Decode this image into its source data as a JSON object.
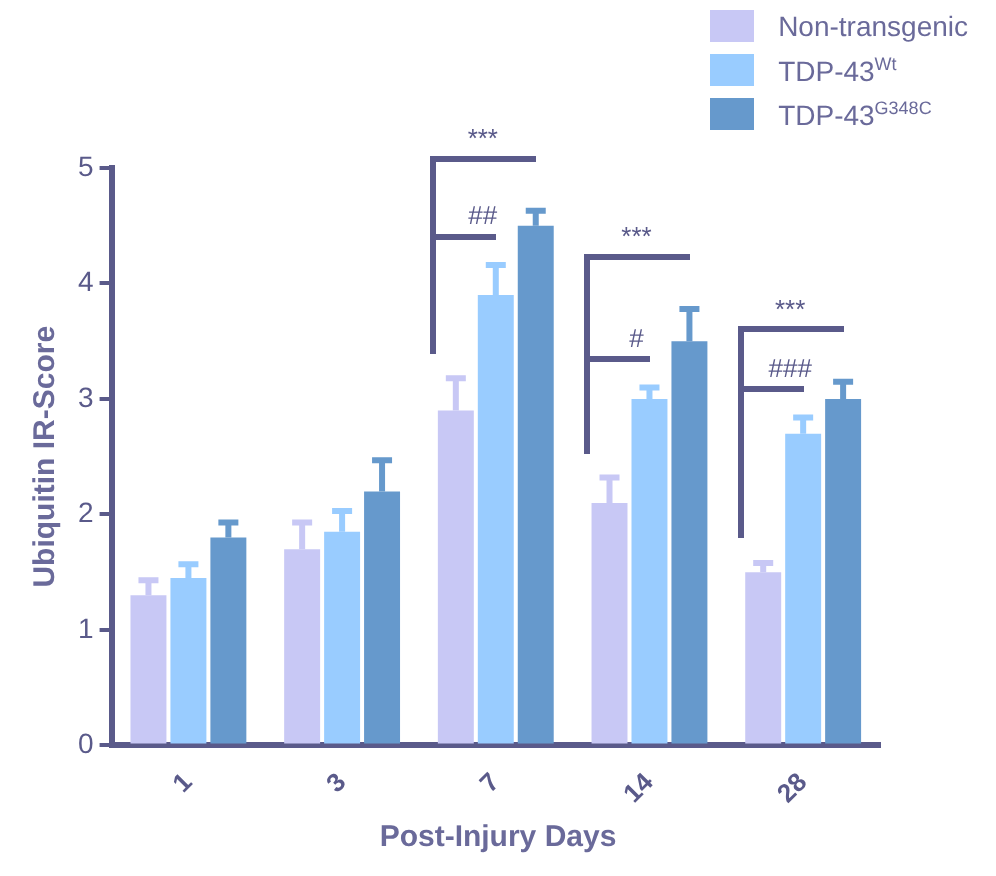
{
  "chart_data": {
    "type": "bar",
    "xlabel": "Post-Injury Days",
    "ylabel": "Ubiquitin IR-Score",
    "categories": [
      "1",
      "3",
      "7",
      "14",
      "28"
    ],
    "series": [
      {
        "name": "Non-transgenic",
        "color": "#c8c8f5",
        "values": [
          1.3,
          1.7,
          2.9,
          2.1,
          1.5
        ],
        "errors": [
          [
            1.3,
            1.43
          ],
          [
            1.7,
            1.93
          ],
          [
            2.9,
            3.18
          ],
          [
            2.1,
            2.32
          ],
          [
            1.5,
            1.58
          ]
        ]
      },
      {
        "name": "TDP-43$^{Wt}$",
        "color": "#99ccff",
        "values": [
          1.45,
          1.85,
          3.9,
          3.0,
          2.7
        ],
        "errors": [
          [
            1.45,
            1.57
          ],
          [
            1.85,
            2.03
          ],
          [
            3.9,
            4.16
          ],
          [
            3.0,
            3.1
          ],
          [
            2.7,
            2.84
          ]
        ]
      },
      {
        "name": "TDP-43$^{G348C}$",
        "color": "#6699cc",
        "values": [
          1.8,
          2.2,
          4.5,
          3.5,
          3.0
        ],
        "errors": [
          [
            1.8,
            1.93
          ],
          [
            2.2,
            2.47
          ],
          [
            4.5,
            4.63
          ],
          [
            3.5,
            3.78
          ],
          [
            3.0,
            3.15
          ]
        ]
      }
    ],
    "ylim": [
      0,
      5
    ],
    "yticks": [
      0,
      1,
      2,
      3,
      4,
      5
    ],
    "grid": false,
    "legend": "top right",
    "annotations": [
      "***",
      "##",
      "***",
      "#",
      "***",
      "###"
    ]
  }
}
